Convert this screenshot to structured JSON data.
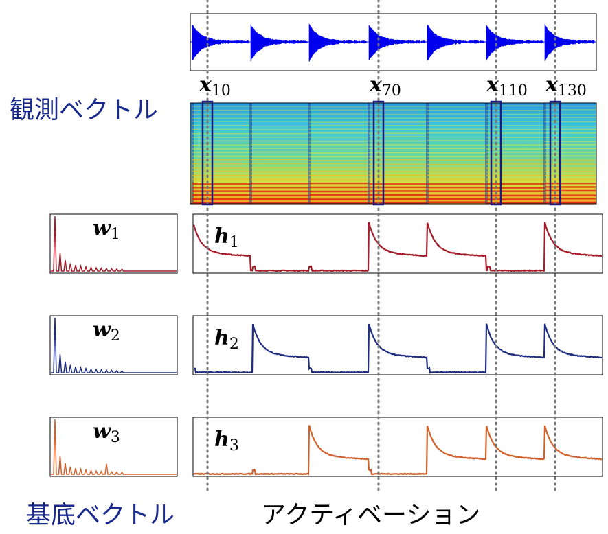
{
  "labels": {
    "observation": "観測ベクトル",
    "basis": "基底ベクトル",
    "activation": "アクティベーション"
  },
  "frames": [
    {
      "symbol": "x",
      "index": "10"
    },
    {
      "symbol": "x",
      "index": "70"
    },
    {
      "symbol": "x",
      "index": "110"
    },
    {
      "symbol": "x",
      "index": "130"
    }
  ],
  "basis": [
    {
      "symbol": "w",
      "index": "1"
    },
    {
      "symbol": "w",
      "index": "2"
    },
    {
      "symbol": "w",
      "index": "3"
    }
  ],
  "activations": [
    {
      "symbol": "h",
      "index": "1"
    },
    {
      "symbol": "h",
      "index": "2"
    },
    {
      "symbol": "h",
      "index": "3"
    }
  ]
}
